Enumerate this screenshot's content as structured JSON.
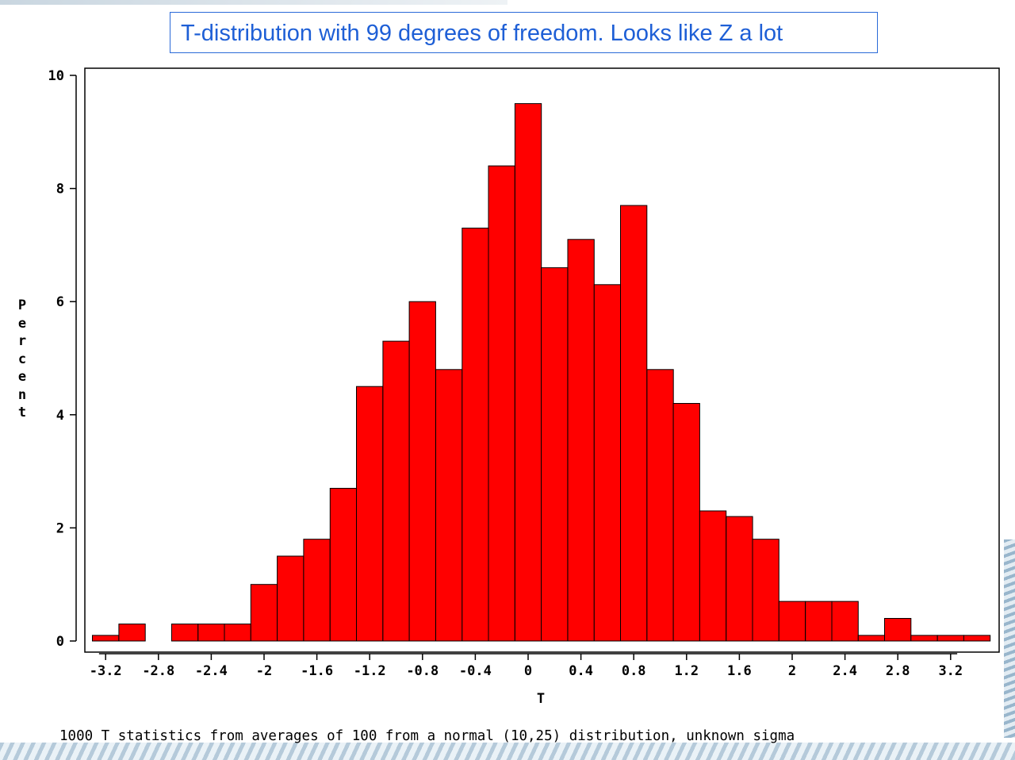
{
  "title": "T-distribution with 99 degrees of freedom. Looks like Z a lot",
  "footnote": "1000 T statistics from averages of 100 from a normal (10,25) distribution, unknown sigma",
  "chart_data": {
    "type": "bar",
    "xlabel": "T",
    "ylabel": "Percent",
    "ylim": [
      0,
      10
    ],
    "yticks": [
      "0",
      "2",
      "4",
      "6",
      "8",
      "10"
    ],
    "xticks": [
      "-3.2",
      "-2.8",
      "-2.4",
      "-2",
      "-1.6",
      "-1.2",
      "-0.8",
      "-0.4",
      "0",
      "0.4",
      "0.8",
      "1.2",
      "1.6",
      "2",
      "2.4",
      "2.8",
      "3.2"
    ],
    "bin_width": 0.2,
    "bin_centers": [
      -3.2,
      -3.0,
      -2.8,
      -2.6,
      -2.4,
      -2.2,
      -2.0,
      -1.8,
      -1.6,
      -1.4,
      -1.2,
      -1.0,
      -0.8,
      -0.6,
      -0.4,
      -0.2,
      0.0,
      0.2,
      0.4,
      0.6,
      0.8,
      1.0,
      1.2,
      1.4,
      1.6,
      1.8,
      2.0,
      2.2,
      2.4,
      2.6,
      2.8,
      3.0,
      3.2,
      3.4
    ],
    "values": [
      0.1,
      0.3,
      0.0,
      0.3,
      0.3,
      0.3,
      1.0,
      1.5,
      1.8,
      2.7,
      4.5,
      5.3,
      6.0,
      4.8,
      7.3,
      8.4,
      9.5,
      6.6,
      7.1,
      6.3,
      7.7,
      4.8,
      4.2,
      2.3,
      2.2,
      1.8,
      0.7,
      0.7,
      0.7,
      0.1,
      0.4,
      0.1,
      0.1,
      0.1
    ],
    "bar_color": "#ff0000",
    "grid": false,
    "legend": "none"
  }
}
